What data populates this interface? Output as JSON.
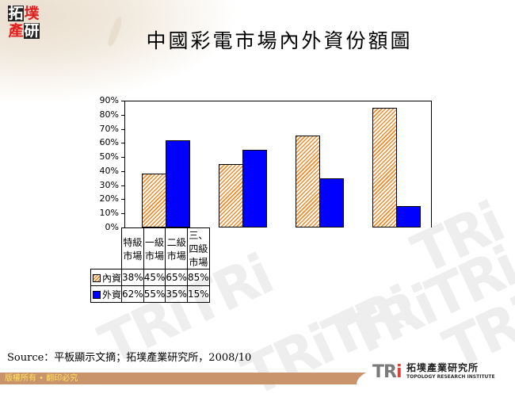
{
  "header": {
    "logo_chars": [
      "拓",
      "墣",
      "產",
      "研"
    ],
    "title": "中國彩電市場內外資份額圖"
  },
  "chart_data": {
    "type": "bar",
    "title": "中國彩電市場內外資份額圖",
    "categories": [
      "特級市場",
      "一級市場",
      "二級市場",
      "三、四級市場"
    ],
    "series": [
      {
        "name": "內資",
        "values": [
          38,
          45,
          65,
          85
        ],
        "labels": [
          "38%",
          "45%",
          "65%",
          "85%"
        ],
        "color": "#f08a2a",
        "pattern": "diagonal-hatch"
      },
      {
        "name": "外資",
        "values": [
          62,
          55,
          35,
          15
        ],
        "labels": [
          "62%",
          "55%",
          "35%",
          "15%"
        ],
        "color": "#0000ff",
        "pattern": "solid"
      }
    ],
    "yticks": [
      "90%",
      "80%",
      "70%",
      "60%",
      "50%",
      "40%",
      "30%",
      "20%",
      "10%",
      "0%"
    ],
    "ylim": [
      0,
      90
    ],
    "xlabel": "",
    "ylabel": "",
    "grid": false,
    "legend_position": "data-table"
  },
  "footer": {
    "source": "Source：平板顯示文摘；拓墣產業研究所，2008/10",
    "copyright": "版權所有 • 翻印必究",
    "org_mark_main": "TR",
    "org_mark_accent": "i",
    "org_name_cn": "拓墣產業研究所",
    "org_name_en": "TOPOLOGY RESEARCH INSTITUTE"
  }
}
